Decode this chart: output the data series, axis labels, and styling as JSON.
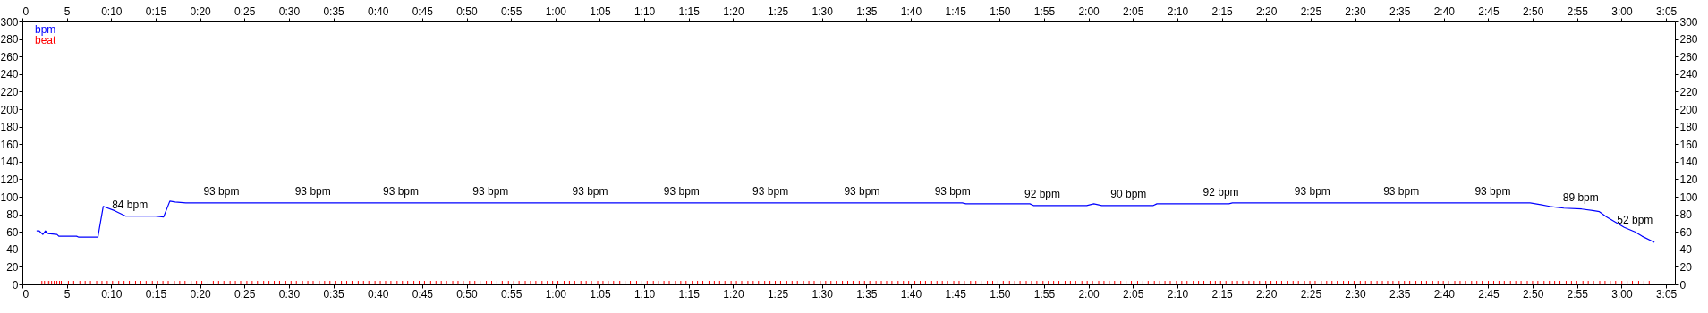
{
  "chart_data": {
    "type": "line",
    "xlim": [
      0,
      186
    ],
    "x2lim": [
      0,
      186
    ],
    "ylim": [
      0,
      300
    ],
    "y2lim": [
      0,
      300
    ],
    "xticks": [
      0,
      5,
      {
        "value": 10,
        "label": "0:10"
      },
      {
        "value": 15,
        "label": "0:15"
      },
      {
        "value": 20,
        "label": "0:20"
      },
      {
        "value": 25,
        "label": "0:25"
      },
      {
        "value": 30,
        "label": "0:30"
      },
      {
        "value": 35,
        "label": "0:35"
      },
      {
        "value": 40,
        "label": "0:40"
      },
      {
        "value": 45,
        "label": "0:45"
      },
      {
        "value": 50,
        "label": "0:50"
      },
      {
        "value": 55,
        "label": "0:55"
      },
      {
        "value": 60,
        "label": "1:00"
      },
      {
        "value": 65,
        "label": "1:05"
      },
      {
        "value": 70,
        "label": "1:10"
      },
      {
        "value": 75,
        "label": "1:15"
      },
      {
        "value": 80,
        "label": "1:20"
      },
      {
        "value": 85,
        "label": "1:25"
      },
      {
        "value": 90,
        "label": "1:30"
      },
      {
        "value": 95,
        "label": "1:35"
      },
      {
        "value": 100,
        "label": "1:40"
      },
      {
        "value": 105,
        "label": "1:45"
      },
      {
        "value": 110,
        "label": "1:50"
      },
      {
        "value": 115,
        "label": "1:55"
      },
      {
        "value": 120,
        "label": "2:00"
      },
      {
        "value": 125,
        "label": "2:05"
      },
      {
        "value": 130,
        "label": "2:10"
      },
      {
        "value": 135,
        "label": "2:15"
      },
      {
        "value": 140,
        "label": "2:20"
      },
      {
        "value": 145,
        "label": "2:25"
      },
      {
        "value": 150,
        "label": "2:30"
      },
      {
        "value": 155,
        "label": "2:35"
      },
      {
        "value": 160,
        "label": "2:40"
      },
      {
        "value": 165,
        "label": "2:45"
      },
      {
        "value": 170,
        "label": "2:50"
      },
      {
        "value": 175,
        "label": "2:55"
      },
      {
        "value": 180,
        "label": "3:00"
      },
      {
        "value": 185,
        "label": "3:05"
      }
    ],
    "x2ticks": [
      0,
      5,
      {
        "value": 10,
        "label": "0:10"
      },
      {
        "value": 15,
        "label": "0:15"
      },
      {
        "value": 20,
        "label": "0:20"
      },
      {
        "value": 25,
        "label": "0:25"
      },
      {
        "value": 30,
        "label": "0:30"
      },
      {
        "value": 35,
        "label": "0:35"
      },
      {
        "value": 40,
        "label": "0:40"
      },
      {
        "value": 45,
        "label": "0:45"
      },
      {
        "value": 50,
        "label": "0:50"
      },
      {
        "value": 55,
        "label": "0:55"
      },
      {
        "value": 60,
        "label": "1:00"
      },
      {
        "value": 65,
        "label": "1:05"
      },
      {
        "value": 70,
        "label": "1:10"
      },
      {
        "value": 75,
        "label": "1:15"
      },
      {
        "value": 80,
        "label": "1:20"
      },
      {
        "value": 85,
        "label": "1:25"
      },
      {
        "value": 90,
        "label": "1:30"
      },
      {
        "value": 95,
        "label": "1:35"
      },
      {
        "value": 100,
        "label": "1:40"
      },
      {
        "value": 105,
        "label": "1:45"
      },
      {
        "value": 110,
        "label": "1:50"
      },
      {
        "value": 115,
        "label": "1:55"
      },
      {
        "value": 120,
        "label": "2:00"
      },
      {
        "value": 125,
        "label": "2:05"
      },
      {
        "value": 130,
        "label": "2:10"
      },
      {
        "value": 135,
        "label": "2:15"
      },
      {
        "value": 140,
        "label": "2:20"
      },
      {
        "value": 145,
        "label": "2:25"
      },
      {
        "value": 150,
        "label": "2:30"
      },
      {
        "value": 155,
        "label": "2:35"
      },
      {
        "value": 160,
        "label": "2:40"
      },
      {
        "value": 165,
        "label": "2:45"
      },
      {
        "value": 170,
        "label": "2:50"
      },
      {
        "value": 175,
        "label": "2:55"
      },
      {
        "value": 180,
        "label": "3:00"
      },
      {
        "value": 185,
        "label": "3:05"
      }
    ],
    "yticks": [
      0,
      20,
      40,
      60,
      80,
      100,
      120,
      140,
      160,
      180,
      200,
      220,
      240,
      260,
      280,
      300
    ],
    "y2ticks": [
      0,
      20,
      40,
      60,
      80,
      100,
      120,
      140,
      160,
      180,
      200,
      220,
      240,
      260,
      280,
      300
    ],
    "grid": false,
    "legend": "top left",
    "series": [
      {
        "name": "bpm",
        "color": "#0000ff",
        "x": [
          1.6,
          1.9,
          2.3,
          2.6,
          2.9,
          3.9,
          4.1,
          6.1,
          6.3,
          8.5,
          9.1,
          10.4,
          11.6,
          15.0,
          15.9,
          16.6,
          17.2,
          18.4,
          105.8,
          106.2,
          113.4,
          113.8,
          119.8,
          120.6,
          121.5,
          127.3,
          127.7,
          135.8,
          136.2,
          169.7,
          170.9,
          171.9,
          173.5,
          175.5,
          176.9,
          177.5,
          178.3,
          180.3,
          181.5,
          182.3,
          183.7
        ],
        "values": [
          61,
          61,
          57,
          61,
          58,
          57,
          55,
          55,
          54,
          54,
          89,
          84,
          78,
          78,
          77,
          95,
          94,
          93,
          93,
          92,
          92,
          90,
          90,
          92,
          90,
          90,
          92,
          92,
          93,
          93,
          91,
          89,
          87,
          86,
          84,
          83,
          77,
          65,
          60,
          55,
          48
        ]
      },
      {
        "name": "beat",
        "type": "bar",
        "color": "#ff0000",
        "x": [
          1.7,
          2.0,
          2.3,
          2.5,
          2.8,
          3.1,
          3.4,
          3.7,
          3.9,
          4.2,
          4.7,
          5.3,
          6.0,
          6.6,
          7.2,
          7.9,
          8.5,
          9.1,
          9.7,
          10.4,
          11.0,
          11.6,
          12.3,
          12.9,
          13.5,
          14.2,
          14.8,
          15.4,
          16.0,
          16.7,
          17.3,
          17.9,
          18.6,
          19.2,
          19.8,
          20.5,
          21.1,
          21.7,
          22.3,
          23.0,
          23.6,
          24.2,
          24.9,
          25.5,
          26.1,
          26.8,
          27.4,
          28.0,
          28.6,
          29.3,
          29.9,
          30.5,
          31.2,
          31.8,
          32.4,
          33.1,
          33.7,
          34.3,
          34.9,
          35.6,
          36.2,
          36.8,
          37.5,
          38.1,
          38.7,
          39.4,
          40.0,
          40.6,
          41.2,
          41.9,
          42.5,
          43.1,
          43.8,
          44.4,
          45.0,
          45.7,
          46.3,
          46.9,
          47.5,
          48.2,
          48.8,
          49.4,
          50.1,
          50.7,
          51.3,
          52.0,
          52.6,
          53.2,
          53.8,
          54.5,
          55.1,
          55.7,
          56.4,
          57.0,
          57.6,
          58.3,
          58.9,
          59.5,
          60.1,
          60.8,
          61.4,
          62.0,
          62.7,
          63.3,
          63.9,
          64.6,
          65.2,
          65.8,
          66.4,
          67.1,
          67.7,
          68.3,
          69.0,
          69.6,
          70.2,
          70.9,
          71.5,
          72.1,
          72.7,
          73.4,
          74.0,
          74.6,
          75.3,
          75.9,
          76.5,
          77.2,
          77.8,
          78.4,
          79.0,
          79.7,
          80.3,
          80.9,
          81.6,
          82.2,
          82.8,
          83.5,
          84.1,
          84.7,
          85.3,
          86.0,
          86.6,
          87.2,
          87.9,
          88.5,
          89.1,
          89.8,
          90.4,
          91.0,
          91.6,
          92.3,
          92.9,
          93.5,
          94.2,
          94.8,
          95.4,
          96.1,
          96.7,
          97.3,
          97.9,
          98.6,
          99.2,
          99.8,
          100.5,
          101.1,
          101.7,
          102.4,
          103.0,
          103.6,
          104.2,
          104.9,
          105.5,
          106.1,
          106.8,
          107.4,
          108.0,
          108.7,
          109.3,
          109.9,
          110.5,
          111.2,
          111.8,
          112.4,
          113.1,
          113.7,
          114.3,
          115.0,
          115.6,
          116.2,
          116.8,
          117.5,
          118.1,
          118.7,
          119.4,
          120.0,
          120.6,
          121.3,
          121.9,
          122.5,
          123.1,
          123.8,
          124.4,
          125.0,
          125.7,
          126.3,
          126.9,
          127.6,
          128.2,
          128.8,
          129.4,
          130.1,
          130.7,
          131.3,
          132.0,
          132.6,
          133.2,
          133.9,
          134.5,
          135.1,
          135.7,
          136.4,
          137.0,
          137.6,
          138.3,
          138.9,
          139.5,
          140.2,
          140.8,
          141.4,
          142.0,
          142.7,
          143.3,
          143.9,
          144.6,
          145.2,
          145.8,
          146.5,
          147.1,
          147.7,
          148.3,
          149.0,
          149.6,
          150.2,
          150.9,
          151.5,
          152.1,
          152.8,
          153.4,
          154.0,
          154.6,
          155.3,
          155.9,
          156.5,
          157.2,
          157.8,
          158.4,
          159.1,
          159.7,
          160.3,
          160.9,
          161.6,
          162.2,
          162.8,
          163.5,
          164.1,
          164.7,
          165.4,
          166.0,
          166.6,
          167.2,
          167.9,
          168.5,
          169.1,
          169.8,
          170.4,
          171.0,
          171.7,
          172.3,
          172.9,
          173.5,
          174.2,
          174.8,
          175.4,
          176.1,
          176.7,
          177.3,
          178.0,
          178.6,
          179.2,
          179.8,
          180.5,
          181.1,
          181.7,
          182.4,
          183.0,
          183.6
        ],
        "values": [
          4,
          4,
          4,
          4,
          4,
          4,
          4,
          4,
          4,
          4,
          4,
          4,
          4,
          4,
          4,
          4,
          4,
          4,
          4,
          4,
          4,
          4,
          4,
          4,
          4,
          4,
          4,
          4,
          4,
          4,
          4,
          4,
          4,
          4,
          4,
          4,
          4,
          4,
          4,
          4,
          4,
          4,
          4,
          4,
          4,
          4,
          4,
          4,
          4,
          4,
          4,
          4,
          4,
          4,
          4,
          4,
          4,
          4,
          4,
          4,
          4,
          4,
          4,
          4,
          4,
          4,
          4,
          4,
          4,
          4,
          4,
          4,
          4,
          4,
          4,
          4,
          4,
          4,
          4,
          4,
          4,
          4,
          4,
          4,
          4,
          4,
          4,
          4,
          4,
          4,
          4,
          4,
          4,
          4,
          4,
          4,
          4,
          4,
          4,
          4,
          4,
          4,
          4,
          4,
          4,
          4,
          4,
          4,
          4,
          4,
          4,
          4,
          4,
          4,
          4,
          4,
          4,
          4,
          4,
          4,
          4,
          4,
          4,
          4,
          4,
          4,
          4,
          4,
          4,
          4,
          4,
          4,
          4,
          4,
          4,
          4,
          4,
          4,
          4,
          4,
          4,
          4,
          4,
          4,
          4,
          4,
          4,
          4,
          4,
          4,
          4,
          4,
          4,
          4,
          4,
          4,
          4,
          4,
          4,
          4,
          4,
          4,
          4,
          4,
          4,
          4,
          4,
          4,
          4,
          4,
          4,
          4,
          4,
          4,
          4,
          4,
          4,
          4,
          4,
          4,
          4,
          4,
          4,
          4,
          4,
          4,
          4,
          4,
          4,
          4,
          4,
          4,
          4,
          4,
          4,
          4,
          4,
          4,
          4,
          4,
          4,
          4,
          4,
          4,
          4,
          4,
          4,
          4,
          4,
          4,
          4,
          4,
          4,
          4,
          4,
          4,
          4,
          4,
          4,
          4,
          4,
          4,
          4,
          4,
          4,
          4,
          4,
          4,
          4,
          4,
          4,
          4,
          4,
          4,
          4,
          4,
          4,
          4,
          4,
          4,
          4,
          4,
          4,
          4,
          4,
          4,
          4,
          4,
          4,
          4,
          4,
          4,
          4,
          4,
          4,
          4,
          4,
          4,
          4,
          4,
          4,
          4,
          4,
          4,
          4,
          4,
          4,
          4,
          4,
          4,
          4,
          4,
          4,
          4,
          4,
          4,
          4,
          4,
          4,
          4,
          4,
          4,
          4,
          4,
          4,
          4,
          4,
          4,
          4,
          4,
          4,
          4,
          4,
          4,
          4
        ]
      }
    ],
    "annotations": [
      {
        "text": "84 bpm",
        "x": 12.1,
        "y": 78
      },
      {
        "text": "93 bpm",
        "x": 22.4,
        "y": 93
      },
      {
        "text": "93 bpm",
        "x": 32.7,
        "y": 93
      },
      {
        "text": "93 bpm",
        "x": 42.6,
        "y": 93
      },
      {
        "text": "93 bpm",
        "x": 52.7,
        "y": 93
      },
      {
        "text": "93 bpm",
        "x": 63.9,
        "y": 93
      },
      {
        "text": "93 bpm",
        "x": 74.2,
        "y": 93
      },
      {
        "text": "93 bpm",
        "x": 84.2,
        "y": 93
      },
      {
        "text": "93 bpm",
        "x": 94.5,
        "y": 93
      },
      {
        "text": "93 bpm",
        "x": 104.7,
        "y": 93
      },
      {
        "text": "92 bpm",
        "x": 114.8,
        "y": 90
      },
      {
        "text": "90 bpm",
        "x": 124.5,
        "y": 90
      },
      {
        "text": "92 bpm",
        "x": 134.9,
        "y": 92
      },
      {
        "text": "93 bpm",
        "x": 145.2,
        "y": 93
      },
      {
        "text": "93 bpm",
        "x": 155.2,
        "y": 93
      },
      {
        "text": "93 bpm",
        "x": 165.5,
        "y": 93
      },
      {
        "text": "89 bpm",
        "x": 175.4,
        "y": 86
      },
      {
        "text": "52 bpm",
        "x": 181.5,
        "y": 60
      }
    ]
  }
}
